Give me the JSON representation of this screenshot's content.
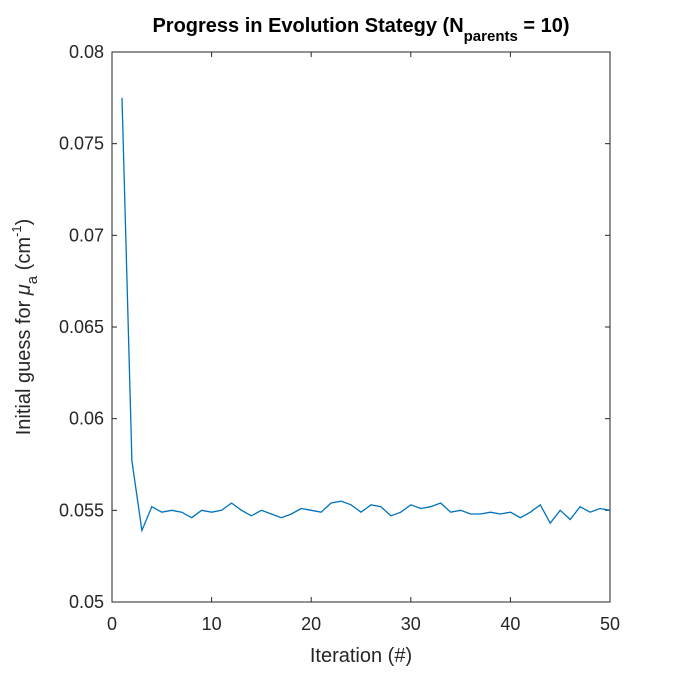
{
  "chart_data": {
    "type": "line",
    "title": {
      "prefix": "Progress in Evolution Stategy (N",
      "subscript": "parents",
      "suffix": " = 10)"
    },
    "xlabel": "Iteration (#)",
    "ylabel": {
      "prefix": "Initial guess for ",
      "mu": "μ",
      "mu_sub": "a",
      "unit_open": " (cm",
      "unit_sup": "-1",
      "unit_close": ")"
    },
    "xlim": [
      0,
      50
    ],
    "ylim": [
      0.05,
      0.08
    ],
    "x_ticks": [
      0,
      10,
      20,
      30,
      40,
      50
    ],
    "x_tick_labels": [
      "0",
      "10",
      "20",
      "30",
      "40",
      "50"
    ],
    "y_ticks": [
      0.05,
      0.055,
      0.06,
      0.065,
      0.07,
      0.075,
      0.08
    ],
    "y_tick_labels": [
      "0.05",
      "0.055",
      "0.06",
      "0.065",
      "0.07",
      "0.075",
      "0.08"
    ],
    "grid": false,
    "line_color": "#0072BD",
    "series": [
      {
        "x": [
          1,
          2,
          3,
          4,
          5,
          6,
          7,
          8,
          9,
          10,
          11,
          12,
          13,
          14,
          15,
          16,
          17,
          18,
          19,
          20,
          21,
          22,
          23,
          24,
          25,
          26,
          27,
          28,
          29,
          30,
          31,
          32,
          33,
          34,
          35,
          36,
          37,
          38,
          39,
          40,
          41,
          42,
          43,
          44,
          45,
          46,
          47,
          48,
          49,
          50
        ],
        "values": [
          0.0775,
          0.0577,
          0.0539,
          0.0552,
          0.0549,
          0.055,
          0.0549,
          0.0546,
          0.055,
          0.0549,
          0.055,
          0.0554,
          0.055,
          0.0547,
          0.055,
          0.0548,
          0.0546,
          0.0548,
          0.0551,
          0.055,
          0.0549,
          0.0554,
          0.0555,
          0.0553,
          0.0549,
          0.0553,
          0.0552,
          0.0547,
          0.0549,
          0.0553,
          0.0551,
          0.0552,
          0.0554,
          0.0549,
          0.055,
          0.0548,
          0.0548,
          0.0549,
          0.0548,
          0.0549,
          0.0546,
          0.0549,
          0.0553,
          0.0543,
          0.055,
          0.0545,
          0.0552,
          0.0549,
          0.0551,
          0.055
        ]
      }
    ]
  }
}
